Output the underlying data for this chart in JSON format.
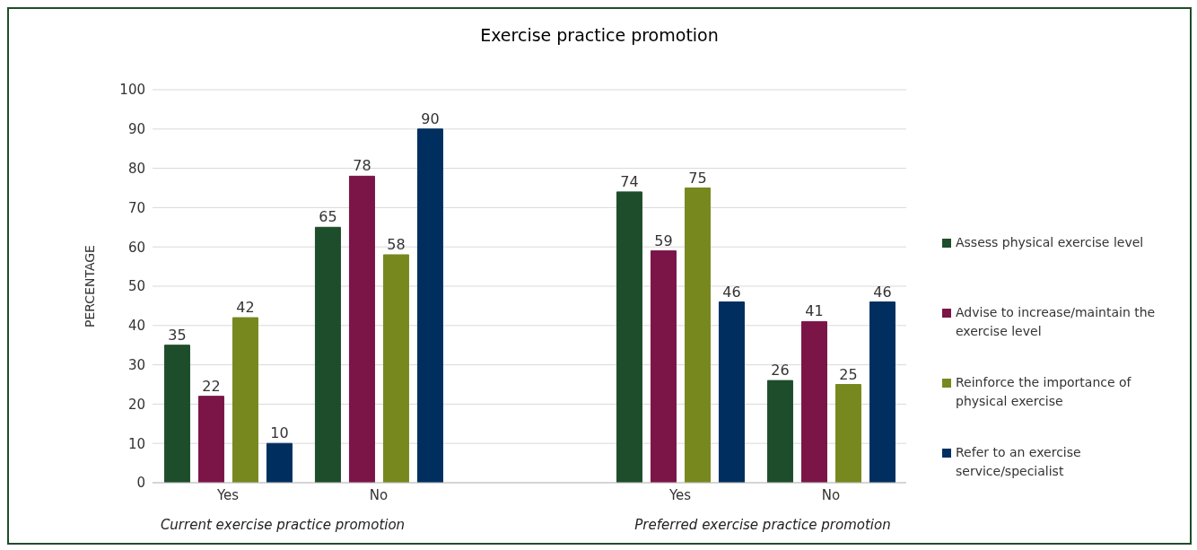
{
  "chart_data": {
    "type": "bar",
    "title": "Exercise practice promotion",
    "ylabel": "PERCENTAGE",
    "categories": [
      "Yes",
      "No",
      null,
      "Yes",
      "No"
    ],
    "series": [
      {
        "name": "Assess physical exercise level",
        "color": "#1e4d2b",
        "values": [
          35,
          65,
          null,
          74,
          26
        ]
      },
      {
        "name": "Advise to increase/maintain the exercise level",
        "color": "#7b1548",
        "values": [
          22,
          78,
          null,
          59,
          41
        ]
      },
      {
        "name": "Reinforce the importance of physical exercise",
        "color": "#77881f",
        "values": [
          42,
          58,
          null,
          75,
          25
        ]
      },
      {
        "name": "Refer to an exercise service/specialist",
        "color": "#002f5f",
        "values": [
          10,
          90,
          null,
          46,
          46
        ]
      }
    ],
    "ylim": [
      0,
      100
    ],
    "yticks": [
      0,
      10,
      20,
      30,
      40,
      50,
      60,
      70,
      80,
      90,
      100
    ],
    "grid": "y",
    "legend": "right",
    "data_labels": true,
    "annotations": [
      "Current exercise practice promotion",
      "Preferred exercise practice promotion"
    ]
  }
}
